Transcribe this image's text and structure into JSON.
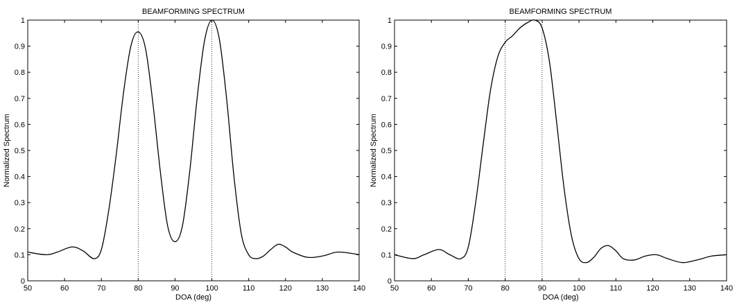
{
  "chart_data": [
    {
      "type": "line",
      "title": "BEAMFORMING SPECTRUM",
      "xlabel": "DOA (deg)",
      "ylabel": "Normalized Spectrum",
      "xlim": [
        50,
        140
      ],
      "ylim": [
        0,
        1
      ],
      "xticks": [
        50,
        60,
        70,
        80,
        90,
        100,
        110,
        120,
        130,
        140
      ],
      "yticks": [
        0,
        0.1,
        0.2,
        0.3,
        0.4,
        0.5,
        0.6,
        0.7,
        0.8,
        0.9,
        1
      ],
      "ytick_labels": [
        "0",
        "0.1",
        "0.2",
        "0.3",
        "0.4",
        "0.5",
        "0.6",
        "0.7",
        "0.8",
        "0.9",
        "1"
      ],
      "grid": false,
      "reference_lines_x": [
        80,
        100
      ],
      "series": [
        {
          "color": "#000000",
          "x": [
            50,
            55,
            58,
            62,
            65,
            68,
            70,
            72,
            74,
            76,
            78,
            80,
            82,
            84,
            86,
            88,
            90,
            92,
            94,
            96,
            98,
            100,
            102,
            104,
            106,
            108,
            110,
            112,
            114,
            116,
            118,
            120,
            122,
            126,
            130,
            134,
            138,
            140
          ],
          "y": [
            0.11,
            0.1,
            0.11,
            0.13,
            0.115,
            0.085,
            0.12,
            0.27,
            0.48,
            0.72,
            0.9,
            0.955,
            0.89,
            0.68,
            0.42,
            0.21,
            0.15,
            0.21,
            0.42,
            0.7,
            0.92,
            1.0,
            0.93,
            0.7,
            0.4,
            0.18,
            0.1,
            0.085,
            0.095,
            0.12,
            0.14,
            0.13,
            0.11,
            0.09,
            0.095,
            0.11,
            0.105,
            0.1
          ]
        }
      ]
    },
    {
      "type": "line",
      "title": "BEAMFORMING SPECTRUM",
      "xlabel": "DOA (deg)",
      "ylabel": "Normalized Spectrum",
      "xlim": [
        50,
        140
      ],
      "ylim": [
        0,
        1
      ],
      "xticks": [
        50,
        60,
        70,
        80,
        90,
        100,
        110,
        120,
        130,
        140
      ],
      "yticks": [
        0,
        0.1,
        0.2,
        0.3,
        0.4,
        0.5,
        0.6,
        0.7,
        0.8,
        0.9,
        1
      ],
      "ytick_labels": [
        "0",
        "0.1",
        "0.2",
        "0.3",
        "0.4",
        "0.5",
        "0.6",
        "0.7",
        "0.8",
        "0.9",
        "1"
      ],
      "grid": false,
      "reference_lines_x": [
        80,
        90
      ],
      "series": [
        {
          "color": "#000000",
          "x": [
            50,
            55,
            58,
            62,
            65,
            68,
            70,
            72,
            74,
            76,
            78,
            80,
            82,
            84,
            86,
            88,
            90,
            92,
            94,
            96,
            98,
            100,
            102,
            104,
            106,
            108,
            110,
            112,
            115,
            118,
            121,
            124,
            128,
            132,
            136,
            140
          ],
          "y": [
            0.1,
            0.085,
            0.1,
            0.12,
            0.1,
            0.085,
            0.13,
            0.3,
            0.52,
            0.73,
            0.86,
            0.915,
            0.94,
            0.97,
            0.99,
            1.0,
            0.97,
            0.84,
            0.6,
            0.35,
            0.17,
            0.085,
            0.07,
            0.09,
            0.125,
            0.135,
            0.115,
            0.085,
            0.08,
            0.095,
            0.1,
            0.085,
            0.07,
            0.08,
            0.095,
            0.1
          ]
        }
      ]
    }
  ]
}
